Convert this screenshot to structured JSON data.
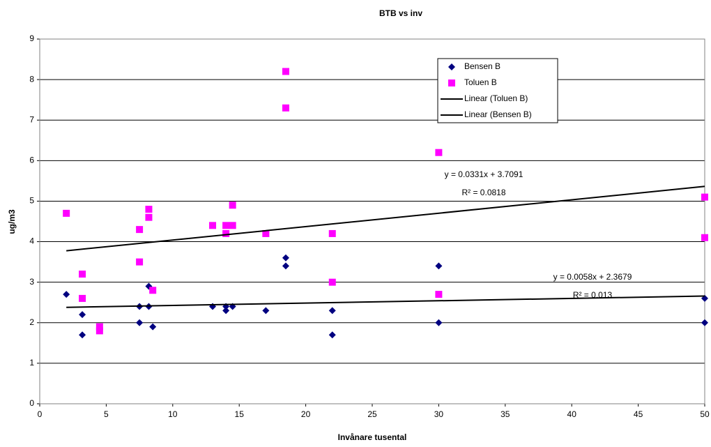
{
  "chart_data": {
    "type": "scatter",
    "title": "BTB vs inv",
    "x_label": "Invånare tusental",
    "y_label": "ug/m3",
    "xlim": [
      0,
      50
    ],
    "xticks": [
      0,
      5,
      10,
      15,
      20,
      25,
      30,
      35,
      40,
      45,
      50
    ],
    "ylim": [
      0,
      9
    ],
    "yticks": [
      0,
      1,
      2,
      3,
      4,
      5,
      6,
      7,
      8,
      9
    ],
    "grid": true,
    "legend": "top-right",
    "series": [
      {
        "name": "Bensen B",
        "color": "#000080",
        "marker": "diamond",
        "x": [
          2,
          3.2,
          3.2,
          7.5,
          7.5,
          8.2,
          8.2,
          8.5,
          13,
          14,
          14,
          14.5,
          17,
          18.5,
          18.5,
          22,
          22,
          30,
          30,
          50,
          50
        ],
        "values": [
          2.7,
          2.2,
          1.7,
          2.4,
          2.0,
          2.9,
          2.4,
          1.9,
          2.4,
          2.4,
          2.3,
          2.4,
          2.3,
          3.6,
          3.4,
          2.3,
          1.7,
          3.4,
          2.0,
          2.6,
          2.0
        ]
      },
      {
        "name": "Toluen B",
        "color": "#ff00ff",
        "marker": "square",
        "x": [
          2,
          3.2,
          3.2,
          4.5,
          4.5,
          7.5,
          7.5,
          8.2,
          8.2,
          8.5,
          13,
          14,
          14,
          14.5,
          14.5,
          17,
          18.5,
          18.5,
          22,
          22,
          30,
          30,
          50,
          50
        ],
        "values": [
          4.7,
          3.2,
          2.6,
          1.9,
          1.8,
          4.3,
          3.5,
          4.8,
          4.6,
          2.8,
          4.4,
          4.4,
          4.2,
          4.9,
          4.4,
          4.2,
          8.2,
          7.3,
          4.2,
          3.0,
          6.2,
          2.7,
          5.1,
          4.1
        ]
      }
    ],
    "trendlines": [
      {
        "name": "Linear (Toluen B)",
        "color": "#000000",
        "slope": 0.0331,
        "intercept": 3.7091,
        "equation": "y = 0.0331x + 3.7091",
        "r2": "R² = 0.0818"
      },
      {
        "name": "Linear (Bensen B)",
        "color": "#000000",
        "slope": 0.0058,
        "intercept": 2.3679,
        "equation": "y = 0.0058x + 2.3679",
        "r2": "R² = 0.013"
      }
    ]
  }
}
